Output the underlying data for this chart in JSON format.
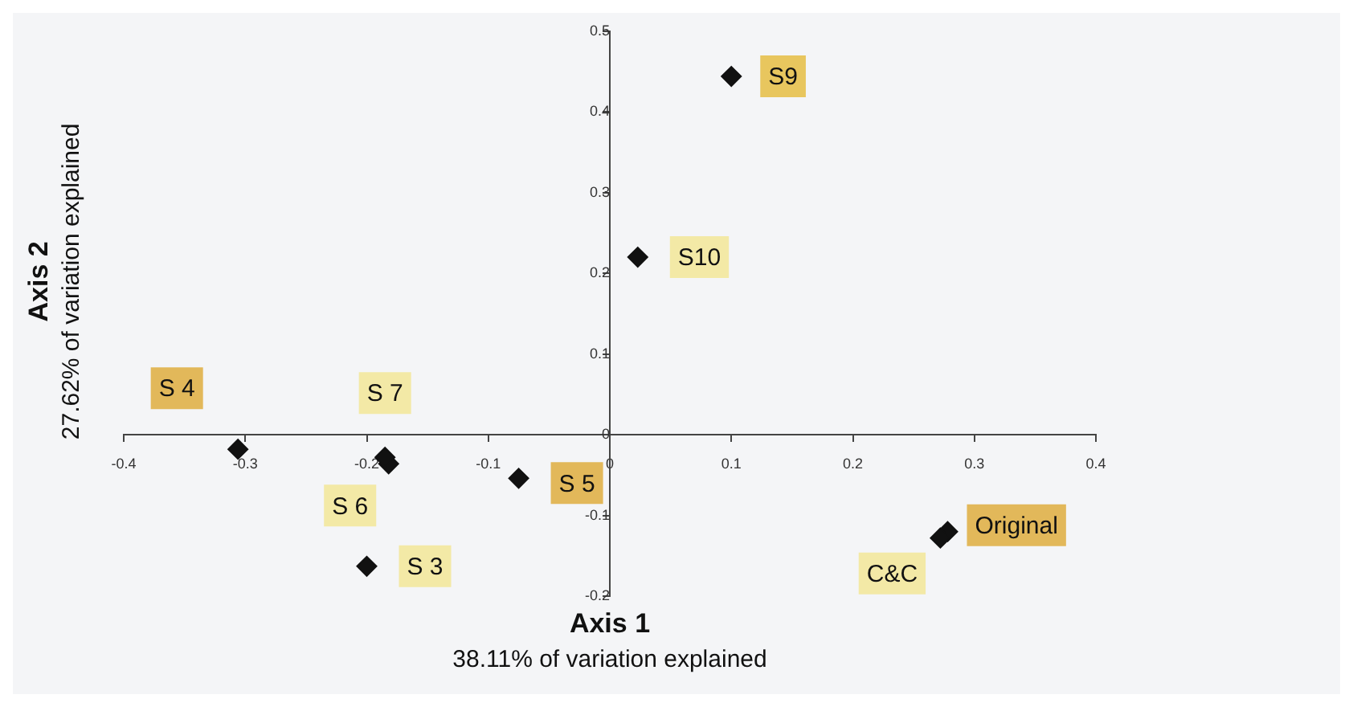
{
  "chart_data": {
    "type": "scatter",
    "xlabel": "Axis 1\n38.11% of variation explained",
    "ylabel": "Axis 2\n27.62% of variation explained",
    "series": [
      {
        "name": "S9",
        "color": "#111111",
        "x": [
          0.1
        ],
        "values": [
          0.444
        ]
      },
      {
        "name": "S10",
        "color": "#111111",
        "x": [
          0.023
        ],
        "values": [
          0.22
        ]
      },
      {
        "name": "S 4",
        "color": "#111111",
        "x": [
          -0.306
        ],
        "values": [
          -0.018
        ]
      },
      {
        "name": "S 7",
        "color": "#111111",
        "x": [
          -0.185
        ],
        "values": [
          -0.028
        ]
      },
      {
        "name": "S 6",
        "color": "#111111",
        "x": [
          -0.182
        ],
        "values": [
          -0.036
        ]
      },
      {
        "name": "S 5",
        "color": "#111111",
        "x": [
          -0.075
        ],
        "values": [
          -0.054
        ]
      },
      {
        "name": "S 3",
        "color": "#111111",
        "x": [
          -0.2
        ],
        "values": [
          -0.163
        ]
      },
      {
        "name": "C&C",
        "color": "#111111",
        "x": [
          0.272
        ],
        "values": [
          -0.128
        ]
      },
      {
        "name": "Original",
        "color": "#111111",
        "x": [
          0.278
        ],
        "values": [
          -0.12
        ]
      }
    ],
    "xlim": [
      -0.4,
      0.4
    ],
    "xticks": [
      -0.4,
      -0.3,
      -0.2,
      -0.1,
      0,
      0.1,
      0.2,
      0.3,
      0.4
    ],
    "ylim": [
      -0.2,
      0.5
    ],
    "yticks": [
      -0.2,
      -0.1,
      0,
      0.1,
      0.2,
      0.3,
      0.4,
      0.5
    ],
    "grid": false,
    "legend": false,
    "marker": "diamond"
  }
}
